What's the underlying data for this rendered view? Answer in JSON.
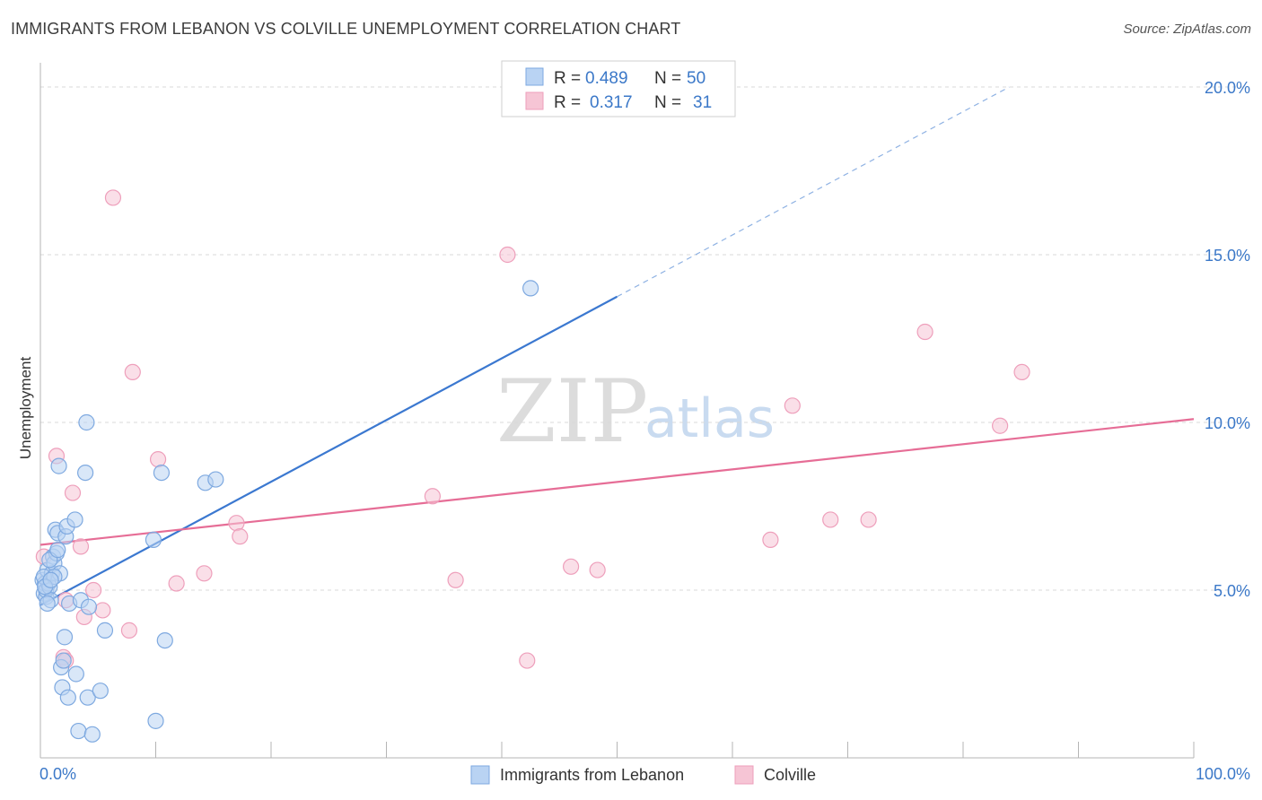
{
  "title": "IMMIGRANTS FROM LEBANON VS COLVILLE UNEMPLOYMENT CORRELATION CHART",
  "source": "Source: ZipAtlas.com",
  "watermark": {
    "zip": "ZIP",
    "atlas": "atlas"
  },
  "colors": {
    "blue": "#3b78d0",
    "blue_fill": "#b9d3f3",
    "pink": "#e66d96",
    "pink_fill": "#f6c5d5",
    "grid": "#d9d9d9",
    "tick_text": "#3b78c8"
  },
  "legend": {
    "rows": [
      {
        "r_label": "R =",
        "r_value": "0.489",
        "n_label": "N =",
        "n_value": "50"
      },
      {
        "r_label": "R =",
        "r_value": "0.317",
        "n_label": "N =",
        "n_value": "31"
      }
    ]
  },
  "chart_data": {
    "type": "scatter",
    "title": "IMMIGRANTS FROM LEBANON VS COLVILLE UNEMPLOYMENT CORRELATION CHART",
    "xlabel": "",
    "ylabel": "Unemployment",
    "xlim": [
      0,
      100
    ],
    "ylim": [
      0,
      20
    ],
    "x_tick_labels": [
      "0.0%",
      "100.0%"
    ],
    "y_ticks": [
      5,
      10,
      15,
      20
    ],
    "y_tick_labels": [
      "5.0%",
      "10.0%",
      "15.0%",
      "20.0%"
    ],
    "grid": true,
    "legend_position": "top-center",
    "series": [
      {
        "name": "Immigrants from Lebanon",
        "color": "#3b78d0",
        "points": [
          [
            0.2,
            5.3
          ],
          [
            0.3,
            4.9
          ],
          [
            0.4,
            5.2
          ],
          [
            0.5,
            4.8
          ],
          [
            0.5,
            5.0
          ],
          [
            0.6,
            5.6
          ],
          [
            0.7,
            5.2
          ],
          [
            0.8,
            5.1
          ],
          [
            0.9,
            4.7
          ],
          [
            1.0,
            5.5
          ],
          [
            1.1,
            6.0
          ],
          [
            1.2,
            5.8
          ],
          [
            1.3,
            6.8
          ],
          [
            1.4,
            6.1
          ],
          [
            1.5,
            6.7
          ],
          [
            1.6,
            8.7
          ],
          [
            1.7,
            5.5
          ],
          [
            1.8,
            2.7
          ],
          [
            1.9,
            2.1
          ],
          [
            2.0,
            2.9
          ],
          [
            2.1,
            3.6
          ],
          [
            2.2,
            6.6
          ],
          [
            2.3,
            6.9
          ],
          [
            2.4,
            1.8
          ],
          [
            2.5,
            4.6
          ],
          [
            3.0,
            7.1
          ],
          [
            3.1,
            2.5
          ],
          [
            3.3,
            0.8
          ],
          [
            3.5,
            4.7
          ],
          [
            3.9,
            8.5
          ],
          [
            4.0,
            10.0
          ],
          [
            4.1,
            1.8
          ],
          [
            4.2,
            4.5
          ],
          [
            4.5,
            0.7
          ],
          [
            5.2,
            2.0
          ],
          [
            5.6,
            3.8
          ],
          [
            9.8,
            6.5
          ],
          [
            10.0,
            1.1
          ],
          [
            10.5,
            8.5
          ],
          [
            10.8,
            3.5
          ],
          [
            14.3,
            8.2
          ],
          [
            15.2,
            8.3
          ],
          [
            42.5,
            14.0
          ],
          [
            0.3,
            5.4
          ],
          [
            0.6,
            4.6
          ],
          [
            0.8,
            5.9
          ],
          [
            1.2,
            5.4
          ],
          [
            0.4,
            5.1
          ],
          [
            0.9,
            5.3
          ],
          [
            1.5,
            6.2
          ]
        ],
        "trend": {
          "x0": 0,
          "y0": 4.55,
          "x1": 50,
          "y1": 13.75,
          "dash_to_x": 84,
          "dash_to_y": 20.0
        }
      },
      {
        "name": "Colville",
        "color": "#e66d96",
        "points": [
          [
            0.3,
            6.0
          ],
          [
            1.4,
            9.0
          ],
          [
            2.0,
            3.0
          ],
          [
            2.2,
            2.9
          ],
          [
            2.2,
            4.7
          ],
          [
            2.8,
            7.9
          ],
          [
            3.5,
            6.3
          ],
          [
            3.8,
            4.2
          ],
          [
            4.6,
            5.0
          ],
          [
            5.4,
            4.4
          ],
          [
            6.3,
            16.7
          ],
          [
            8.0,
            11.5
          ],
          [
            7.7,
            3.8
          ],
          [
            10.2,
            8.9
          ],
          [
            11.8,
            5.2
          ],
          [
            14.2,
            5.5
          ],
          [
            17.0,
            7.0
          ],
          [
            17.3,
            6.6
          ],
          [
            34.0,
            7.8
          ],
          [
            36.0,
            5.3
          ],
          [
            40.5,
            15.0
          ],
          [
            42.2,
            2.9
          ],
          [
            46.0,
            5.7
          ],
          [
            48.3,
            5.6
          ],
          [
            63.3,
            6.5
          ],
          [
            65.2,
            10.5
          ],
          [
            68.5,
            7.1
          ],
          [
            71.8,
            7.1
          ],
          [
            76.7,
            12.7
          ],
          [
            83.2,
            9.9
          ],
          [
            85.1,
            11.5
          ]
        ],
        "trend": {
          "x0": 0,
          "y0": 6.35,
          "x1": 100,
          "y1": 10.1
        }
      }
    ]
  }
}
